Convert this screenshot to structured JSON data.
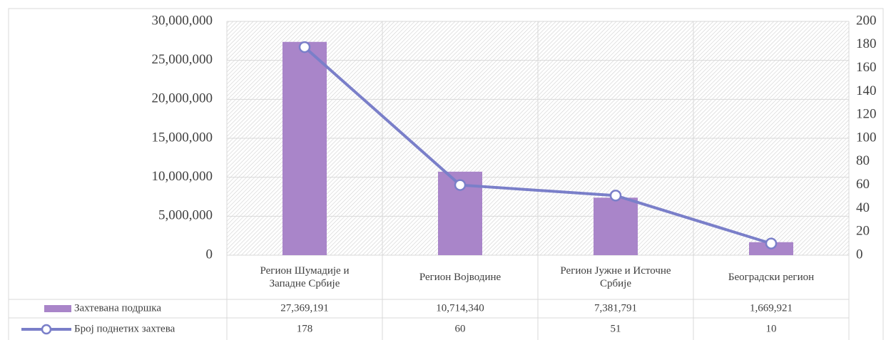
{
  "chart_data": {
    "type": "bar-line",
    "categories": [
      "Регион Шумадије и Западне Србије",
      "Регион Војводине",
      "Регион Јужне и Источне Србије",
      "Београдски регион"
    ],
    "series": [
      {
        "name": "Захтевана подршка",
        "type": "bar",
        "color": "#a985c9",
        "axis": "y",
        "values": [
          27369191,
          10714340,
          7381791,
          1669921
        ],
        "value_labels": [
          "27,369,191",
          "10,714,340",
          "7,381,791",
          "1,669,921"
        ]
      },
      {
        "name": "Број поднетих захтева",
        "type": "line",
        "color": "#7a7fc9",
        "axis": "y2",
        "values": [
          178,
          60,
          51,
          10
        ]
      }
    ],
    "ylim": [
      0,
      30000000
    ],
    "yticks": [
      {
        "value": 0,
        "label": "0"
      },
      {
        "value": 5000000,
        "label": "5,000,000"
      },
      {
        "value": 10000000,
        "label": "10,000,000"
      },
      {
        "value": 15000000,
        "label": "15,000,000"
      },
      {
        "value": 20000000,
        "label": "20,000,000"
      },
      {
        "value": 25000000,
        "label": "25,000,000"
      },
      {
        "value": 30000000,
        "label": "30,000,000"
      }
    ],
    "y2lim": [
      0,
      200
    ],
    "y2ticks": [
      0,
      20,
      40,
      60,
      80,
      100,
      120,
      140,
      160,
      180,
      200
    ],
    "grid": true,
    "data_table": true
  }
}
